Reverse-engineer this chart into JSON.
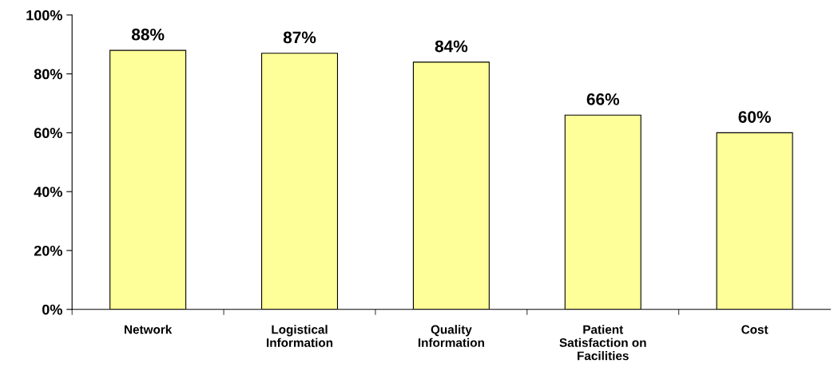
{
  "chart_data": {
    "type": "bar",
    "categories": [
      "Network",
      "Logistical\nInformation",
      "Quality\nInformation",
      "Patient\nSatisfaction on\nFacilities",
      "Cost"
    ],
    "values": [
      88,
      87,
      84,
      66,
      60
    ],
    "value_labels": [
      "88%",
      "87%",
      "84%",
      "66%",
      "60%"
    ],
    "color": "#ffff99",
    "ylim": [
      0,
      100
    ],
    "yticks": [
      {
        "value": 0,
        "label": "0%"
      },
      {
        "value": 20,
        "label": "20%"
      },
      {
        "value": 40,
        "label": "40%"
      },
      {
        "value": 60,
        "label": "60%"
      },
      {
        "value": 80,
        "label": "80%"
      },
      {
        "value": 100,
        "label": "100%"
      }
    ],
    "grid": false
  }
}
